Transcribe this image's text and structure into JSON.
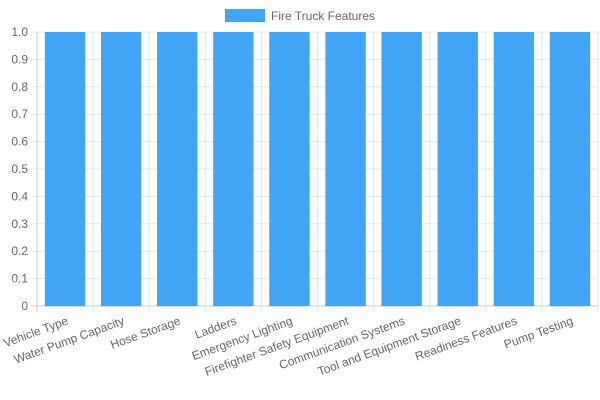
{
  "chart_data": {
    "type": "bar",
    "categories": [
      "Vehicle Type",
      "Water Pump Capacity",
      "Hose Storage",
      "Ladders",
      "Emergency Lighting",
      "Firefighter Safety Equipment",
      "Communication Systems",
      "Tool and Equipment Storage",
      "Readiness Features",
      "Pump Testing"
    ],
    "series": [
      {
        "name": "Fire Truck Features",
        "values": [
          1,
          1,
          1,
          1,
          1,
          1,
          1,
          1,
          1,
          1
        ],
        "color": "#42a5f5"
      }
    ],
    "yticks": [
      "0",
      "0.1",
      "0.2",
      "0.3",
      "0.4",
      "0.5",
      "0.6",
      "0.7",
      "0.8",
      "0.9",
      "1.0"
    ],
    "ylim": [
      0,
      1
    ],
    "grid": true,
    "legend_position": "top"
  }
}
